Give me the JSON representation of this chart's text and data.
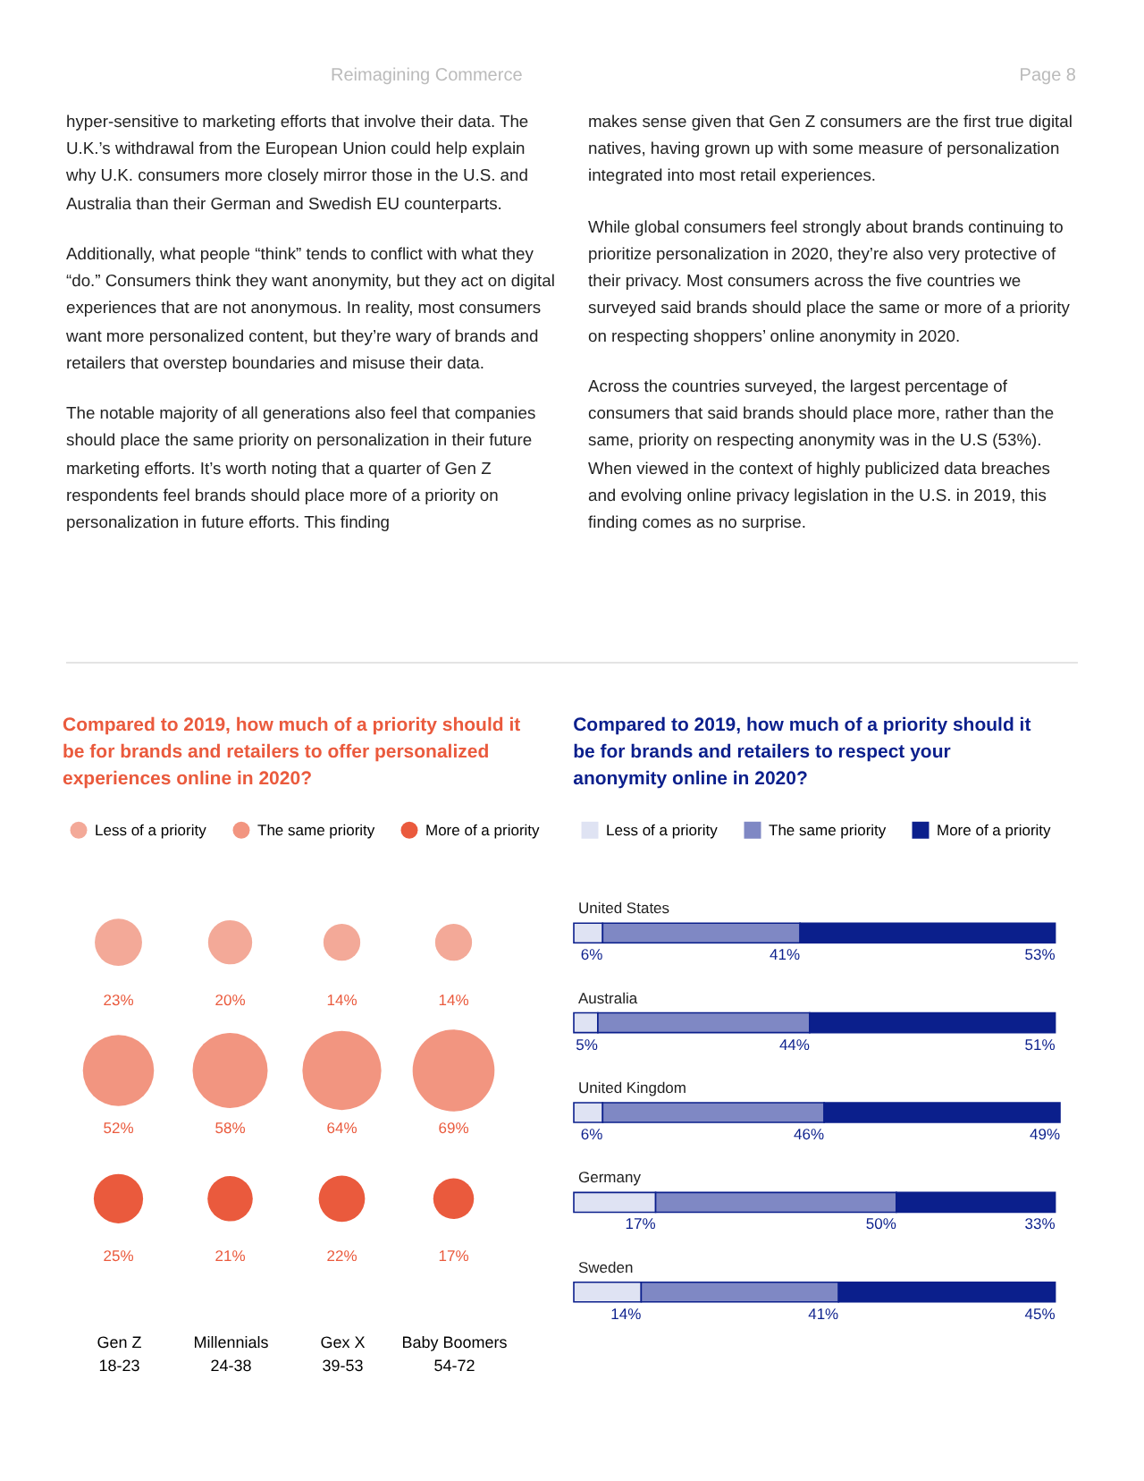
{
  "chart_data": [
    {
      "type": "other",
      "title": "Compared to 2019, how much of a priority should it be for brands and retailers to offer personalized experiences online in 2020?",
      "categories": [
        "Gen Z\n18-23",
        "Millennials\n24-38",
        "Gex X\n39-53",
        "Baby Boomers\n54-72"
      ],
      "series": [
        {
          "name": "Less of a priority",
          "color": "#f3a998",
          "values": [
            23,
            20,
            14,
            14
          ],
          "value_labels": [
            "23%",
            "20%",
            "14%",
            "14%"
          ]
        },
        {
          "name": "The same priority",
          "color": "#f29580",
          "values": [
            52,
            58,
            64,
            69
          ],
          "value_labels": [
            "52%",
            "58%",
            "64%",
            "69%"
          ]
        },
        {
          "name": "More of a priority",
          "color": "#ea5a3d",
          "values": [
            25,
            21,
            22,
            17
          ],
          "value_labels": [
            "25%",
            "21%",
            "22%",
            "17%"
          ]
        }
      ],
      "legend": "top",
      "annotations": [
        "Reimagining Commerce",
        "Page 8",
        "hyper-sensitive to marketing efforts that involve their data. The U.K.’s withdrawal from the European Union could help explain why U.K. consumers more closely mirror those in the U.S. and Australia than their German and Swedish EU counterparts.",
        "Additionally, what people “think” tends to conflict with what they “do.” Consumers think they want anonymity, but they act on digital experiences that are not anonymous. In reality, most consumers want more personalized content, but they’re wary of brands and retailers that overstep boundaries and misuse their data.",
        "The notable majority of all generations also feel that companies should place the same priority on personalization in their future marketing efforts. It’s worth noting that a quarter of Gen Z respondents feel brands should place more of a priority on personalization in future efforts. This finding"
      ]
    },
    {
      "type": "bar",
      "orientation": "horizontal",
      "stacked": true,
      "title": "Compared to 2019, how much of a priority should it be for brands and retailers to respect your anonymity online in 2020?",
      "categories": [
        "United States",
        "Australia",
        "United Kingdom",
        "Germany",
        "Sweden"
      ],
      "series": [
        {
          "name": "Less of a priority",
          "color": "#dfe3f3",
          "values": [
            6,
            5,
            6,
            17,
            14
          ],
          "value_labels": [
            "6%",
            "5%",
            "6%",
            "17%",
            "14%"
          ]
        },
        {
          "name": "The same priority",
          "color": "#7f88c4",
          "values": [
            41,
            44,
            46,
            50,
            41
          ],
          "value_labels": [
            "41%",
            "44%",
            "46%",
            "50%",
            "41%"
          ]
        },
        {
          "name": "More of a priority",
          "color": "#0b1f8c",
          "values": [
            53,
            51,
            49,
            33,
            45
          ],
          "value_labels": [
            "53%",
            "51%",
            "49%",
            "33%",
            "45%"
          ]
        }
      ],
      "legend": "top",
      "tick_labels": "y",
      "annotations": [
        "makes sense given that Gen Z consumers are the first true digital natives, having grown up with some measure of personalization integrated into most retail experiences.",
        "While global consumers feel strongly about brands continuing to prioritize personalization in 2020, they’re also very protective of their privacy.  Most consumers across the five countries we surveyed said brands should place the same or more of a priority on respecting shoppers’ online anonymity in 2020.",
        "Across the countries surveyed, the largest percentage of consumers that said brands should place more, rather than the same, priority on respecting anonymity was in the U.S (53%). When viewed in the context of highly publicized data breaches and evolving online privacy legislation in the U.S. in 2019, this finding comes as no surprise."
      ]
    }
  ]
}
